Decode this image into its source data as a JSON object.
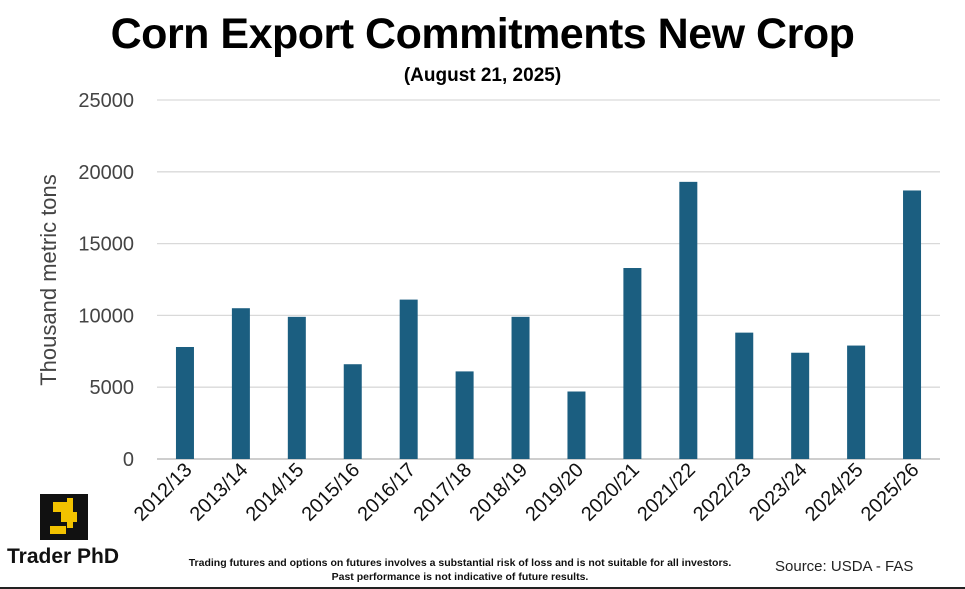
{
  "chart_data": {
    "type": "bar",
    "title": "Corn Export Commitments New Crop",
    "subtitle": "(August 21, 2025)",
    "ylabel": "Thousand metric tons",
    "xlabel": "",
    "ylim": [
      0,
      25000
    ],
    "yticks": [
      0,
      5000,
      10000,
      15000,
      20000,
      25000
    ],
    "grid": true,
    "bar_color": "#1b5e80",
    "categories": [
      "2012/13",
      "2013/14",
      "2014/15",
      "2015/16",
      "2016/17",
      "2017/18",
      "2018/19",
      "2019/20",
      "2020/21",
      "2021/22",
      "2022/23",
      "2023/24",
      "2024/25",
      "2025/26"
    ],
    "values": [
      7800,
      10500,
      9900,
      6600,
      11100,
      6100,
      9900,
      4700,
      13300,
      19300,
      8800,
      7400,
      7900,
      18700
    ]
  },
  "footer": {
    "brand": "Trader PhD",
    "disclaimer_line1": "Trading futures and options on futures involves a substantial risk of loss and is not suitable for all investors.",
    "disclaimer_line2": "Past performance is not indicative of future results.",
    "source": "Source: USDA - FAS"
  },
  "logo": {
    "icon": "trader-phd-logo",
    "color": "#f2c200"
  }
}
